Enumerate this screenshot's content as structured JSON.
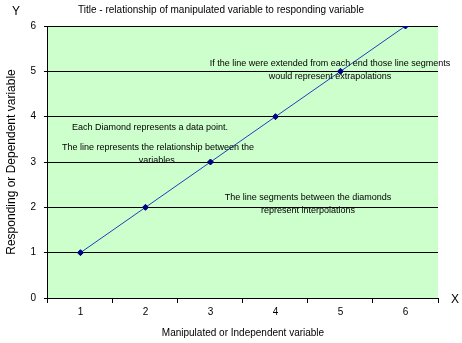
{
  "chart_data": {
    "type": "line",
    "title": "Title - relationship of manipulated variable to responding variable",
    "x_label": "Manipulated or Independent variable",
    "y_label": "Responding or Dependent variable",
    "categories": [
      1,
      2,
      3,
      4,
      5,
      6
    ],
    "values": [
      1,
      2,
      3,
      4,
      5,
      6
    ],
    "color": "#1f3fbf",
    "marker": "diamond",
    "ylim": [
      0,
      6
    ],
    "yticks": [
      0,
      1,
      2,
      3,
      4,
      5,
      6
    ],
    "grid": true,
    "annotations": [
      {
        "text": [
          "Y"
        ]
      },
      {
        "text": [
          "X"
        ]
      },
      {
        "text": [
          "If the line were extended from each end those line segments",
          "would represent extrapolations"
        ]
      },
      {
        "text": [
          "Each Diamond represents a data point."
        ]
      },
      {
        "text": [
          "The line represents the relationship between the",
          "variables."
        ]
      },
      {
        "text": [
          "The line segments between the diamonds",
          "represent interpolations"
        ]
      }
    ]
  }
}
